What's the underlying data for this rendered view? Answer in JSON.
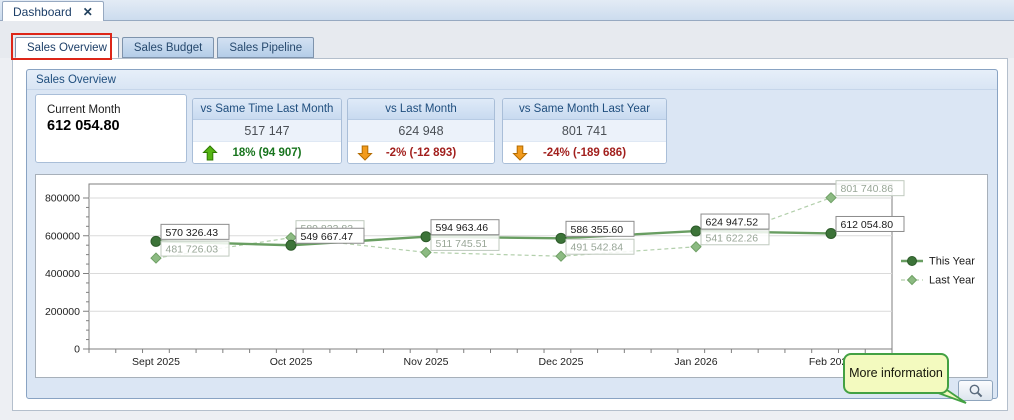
{
  "window": {
    "tab_label": "Dashboard",
    "close_icon": "✕"
  },
  "tabs": [
    {
      "label": "Sales Overview",
      "active": true,
      "annotated": true
    },
    {
      "label": "Sales Budget",
      "active": false
    },
    {
      "label": "Sales Pipeline",
      "active": false
    }
  ],
  "group": {
    "title": "Sales Overview"
  },
  "kpi": {
    "current": {
      "label": "Current Month",
      "value": "612 054.80"
    },
    "cards": [
      {
        "title": "vs Same Time Last Month",
        "value": "517 147",
        "delta": "18% (94 907)",
        "direction": "up",
        "delta_cls": "card-delta up"
      },
      {
        "title": "vs Last Month",
        "value": "624 948",
        "delta": "-2% (-12 893)",
        "direction": "down",
        "delta_cls": "card-delta down"
      },
      {
        "title": "vs Same Month Last Year",
        "value": "801 741",
        "delta": "-24% (-189 686)",
        "direction": "down",
        "delta_cls": "card-delta down"
      }
    ]
  },
  "chart_data": {
    "type": "line",
    "title": "",
    "xlabel": "",
    "ylabel": "",
    "categories": [
      "Sept 2025",
      "Oct 2025",
      "Nov 2025",
      "Dec 2025",
      "Jan 2026",
      "Feb 2026"
    ],
    "series": [
      {
        "name": "This Year",
        "values": [
          570326.43,
          549667.47,
          594963.46,
          586355.6,
          624947.52,
          612054.8
        ],
        "labels": [
          "570 326.43",
          "549 667.47",
          "594 963.46",
          "586 355.60",
          "624 947.52",
          "612 054.80"
        ],
        "line_color": "#699e62",
        "marker_fill": "#3c7338",
        "marker_stroke": "#2c5a29",
        "label_text_color": "#1a1a1a",
        "label_border_color": "#8c8c8c",
        "marker": "circle",
        "dash": false,
        "line_width": 2.4
      },
      {
        "name": "Last Year",
        "values": [
          481726.03,
          589823.83,
          511745.51,
          491542.84,
          541622.26,
          801740.86
        ],
        "labels": [
          "481 726.03",
          "589 823.83",
          "511 745.51",
          "491 542.84",
          "541 622.26",
          "801 740.86"
        ],
        "line_color": "#b2cfab",
        "marker_fill": "#8cba82",
        "marker_stroke": "#6fa065",
        "label_text_color": "#98a697",
        "label_border_color": "#bfcabe",
        "marker": "diamond",
        "dash": true,
        "line_width": 1.2
      }
    ],
    "ylim": [
      0,
      800000
    ],
    "yticks": [
      0,
      200000,
      400000,
      600000,
      800000
    ],
    "ytick_labels": [
      "0",
      "200000",
      "400000",
      "600000",
      "800000"
    ],
    "minor_tick_step": 50000,
    "grid": true,
    "legend_position": "right"
  },
  "callout": {
    "text": "More information"
  },
  "colors": {
    "annotation_red": "#dd2618",
    "positive_green": "#17741d",
    "negative_red": "#a2201e",
    "up_arrow": "#55b413",
    "down_arrow": "#f29b1d",
    "groupbox_blue": "#dbe6f4",
    "callout_yellow": "#f3fabf",
    "callout_border": "#43a143"
  }
}
